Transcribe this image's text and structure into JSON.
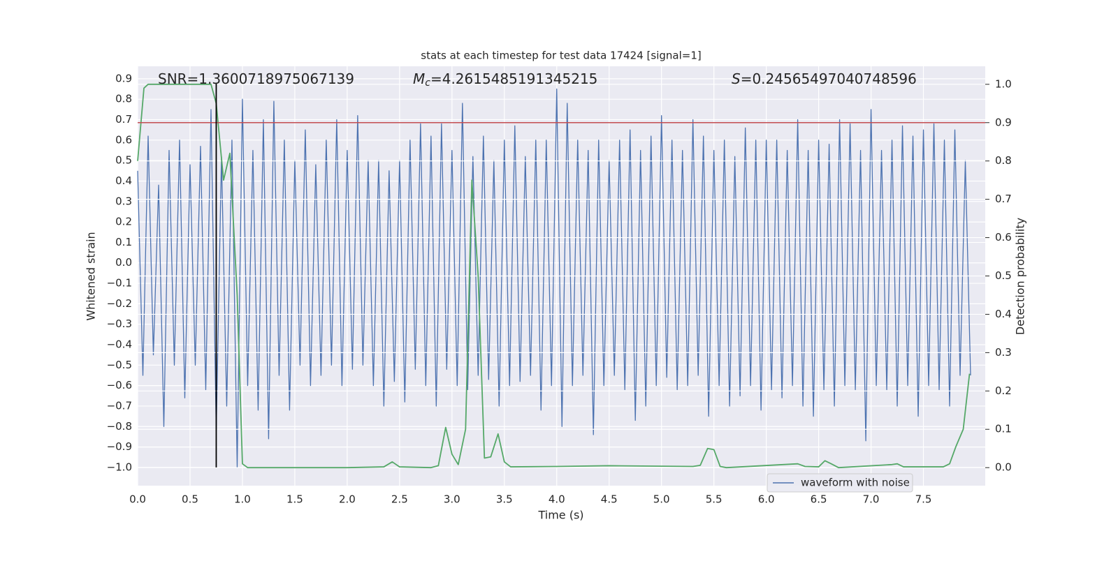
{
  "chart_data": {
    "type": "line",
    "title": "stats at each timestep for test data 17424 [signal=1]",
    "x_label": "Time (s)",
    "y_label": "Whitened strain",
    "y2_label": "Detection probability",
    "annotations": [
      {
        "text": "SNR=1.3600718975067139"
      },
      {
        "symbol": "M",
        "subscript": "c",
        "text": "=4.2615485191345215"
      },
      {
        "symbol": "S",
        "text": "=0.24565497040748596"
      }
    ],
    "xlim": [
      0,
      8.09
    ],
    "ylim": [
      -1.089,
      0.961
    ],
    "y2lim": [
      -0.047,
      1.047
    ],
    "xticks": [
      {
        "value": 0,
        "label": "0.0"
      },
      0.5,
      {
        "value": 1,
        "label": "1.0"
      },
      1.5,
      {
        "value": 2,
        "label": "2.0"
      },
      2.5,
      {
        "value": 3,
        "label": "3.0"
      },
      3.5,
      {
        "value": 4,
        "label": "4.0"
      },
      4.5,
      {
        "value": 5,
        "label": "5.0"
      },
      5.5,
      {
        "value": 6,
        "label": "6.0"
      },
      6.5,
      {
        "value": 7,
        "label": "7.0"
      },
      7.5
    ],
    "yticks": [
      {
        "value": -1,
        "label": "−1.0"
      },
      {
        "value": -0.9,
        "label": "−0.9"
      },
      {
        "value": -0.8,
        "label": "−0.8"
      },
      {
        "value": -0.7,
        "label": "−0.7"
      },
      {
        "value": -0.6,
        "label": "−0.6"
      },
      {
        "value": -0.5,
        "label": "−0.5"
      },
      {
        "value": -0.4,
        "label": "−0.4"
      },
      {
        "value": -0.3,
        "label": "−0.3"
      },
      {
        "value": -0.2,
        "label": "−0.2"
      },
      {
        "value": -0.1,
        "label": "−0.1"
      },
      {
        "value": 0,
        "label": "0.0"
      },
      0.1,
      0.2,
      0.3,
      0.4,
      0.5,
      0.6,
      0.7,
      0.8,
      0.9
    ],
    "y2ticks": [
      {
        "value": 0,
        "label": "0.0"
      },
      0.1,
      0.2,
      0.3,
      0.4,
      0.5,
      0.6,
      0.7,
      0.8,
      0.9,
      {
        "value": 1,
        "label": "1.0"
      }
    ],
    "grid": true,
    "legend": "lower right",
    "series": [
      {
        "name": "waveform with noise",
        "color": "#4c72b0",
        "x": [
          0,
          0.05,
          0.1,
          0.15,
          0.2,
          0.25,
          0.3,
          0.35,
          0.4,
          0.45,
          0.5,
          0.55,
          0.6,
          0.65,
          0.7,
          0.75,
          0.8,
          0.85,
          0.9,
          0.95,
          1,
          1.05,
          1.1,
          1.15,
          1.2,
          1.25,
          1.3,
          1.35,
          1.4,
          1.45,
          1.5,
          1.55,
          1.6,
          1.65,
          1.7,
          1.75,
          1.8,
          1.85,
          1.9,
          1.95,
          2,
          2.05,
          2.1,
          2.15,
          2.2,
          2.25,
          2.3,
          2.35,
          2.4,
          2.45,
          2.5,
          2.55,
          2.6,
          2.65,
          2.7,
          2.75,
          2.8,
          2.85,
          2.9,
          2.95,
          3,
          3.05,
          3.1,
          3.15,
          3.2,
          3.25,
          3.3,
          3.35,
          3.4,
          3.45,
          3.5,
          3.55,
          3.6,
          3.65,
          3.7,
          3.75,
          3.8,
          3.85,
          3.9,
          3.95,
          4,
          4.05,
          4.1,
          4.15,
          4.2,
          4.25,
          4.3,
          4.35,
          4.4,
          4.45,
          4.5,
          4.55,
          4.6,
          4.65,
          4.7,
          4.75,
          4.8,
          4.85,
          4.9,
          4.95,
          5,
          5.05,
          5.1,
          5.15,
          5.2,
          5.25,
          5.3,
          5.35,
          5.4,
          5.45,
          5.5,
          5.55,
          5.6,
          5.65,
          5.7,
          5.75,
          5.8,
          5.85,
          5.9,
          5.95,
          6,
          6.05,
          6.1,
          6.15,
          6.2,
          6.25,
          6.3,
          6.35,
          6.4,
          6.45,
          6.5,
          6.55,
          6.6,
          6.65,
          6.7,
          6.75,
          6.8,
          6.85,
          6.9,
          6.95,
          7,
          7.05,
          7.1,
          7.15,
          7.2,
          7.25,
          7.3,
          7.35,
          7.4,
          7.45,
          7.5,
          7.55,
          7.6,
          7.65,
          7.7,
          7.75,
          7.8,
          7.85,
          7.9,
          7.95
        ],
        "values": [
          0.45,
          -0.55,
          0.62,
          -0.45,
          0.38,
          -0.8,
          0.55,
          -0.5,
          0.6,
          -0.66,
          0.48,
          -0.5,
          0.57,
          -0.62,
          0.75,
          -0.82,
          0.52,
          -0.7,
          0.6,
          -1.0,
          0.8,
          -0.6,
          0.55,
          -0.72,
          0.7,
          -0.86,
          0.79,
          -0.55,
          0.6,
          -0.72,
          0.5,
          -0.5,
          0.65,
          -0.6,
          0.48,
          -0.55,
          0.6,
          -0.5,
          0.7,
          -0.6,
          0.55,
          -0.52,
          0.72,
          -0.5,
          0.5,
          -0.6,
          0.5,
          -0.7,
          0.45,
          -0.58,
          0.5,
          -0.68,
          0.6,
          -0.52,
          0.68,
          -0.6,
          0.62,
          -0.7,
          0.68,
          -0.52,
          0.55,
          -0.6,
          0.78,
          -0.62,
          0.52,
          -0.55,
          0.62,
          -0.57,
          0.5,
          -0.7,
          0.6,
          -0.6,
          0.67,
          -0.58,
          0.52,
          -0.55,
          0.6,
          -0.72,
          0.6,
          -0.6,
          0.85,
          -0.8,
          0.78,
          -0.6,
          0.6,
          -0.55,
          0.55,
          -0.84,
          0.6,
          -0.6,
          0.5,
          -0.55,
          0.6,
          -0.62,
          0.65,
          -0.77,
          0.55,
          -0.7,
          0.62,
          -0.6,
          0.72,
          -0.56,
          0.6,
          -0.62,
          0.55,
          -0.6,
          0.7,
          -0.55,
          0.62,
          -0.75,
          0.55,
          -0.6,
          0.6,
          -0.7,
          0.52,
          -0.65,
          0.66,
          -0.6,
          0.6,
          -0.72,
          0.6,
          -0.62,
          0.6,
          -0.66,
          0.55,
          -0.6,
          0.7,
          -0.7,
          0.55,
          -0.75,
          0.6,
          -0.62,
          0.58,
          -0.7,
          0.7,
          -0.6,
          0.68,
          -0.62,
          0.55,
          -0.87,
          0.75,
          -0.6,
          0.55,
          -0.62,
          0.6,
          -0.7,
          0.67,
          -0.6,
          0.62,
          -0.75,
          0.65,
          -0.6,
          0.68,
          -0.62,
          0.6,
          -0.7,
          0.65,
          -0.55,
          0.5,
          -0.55
        ]
      },
      {
        "color": "#55a868",
        "axis": "y2",
        "x": [
          0,
          0.06,
          0.1,
          0.7,
          0.75,
          0.82,
          0.88,
          0.95,
          1,
          1.05,
          1.5,
          2,
          2.35,
          2.43,
          2.5,
          2.8,
          2.87,
          2.94,
          3,
          3.06,
          3.13,
          3.19,
          3.25,
          3.31,
          3.37,
          3.44,
          3.5,
          3.56,
          4,
          4.5,
          5.3,
          5.37,
          5.44,
          5.5,
          5.56,
          5.62,
          6.3,
          6.37,
          6.5,
          6.56,
          6.62,
          6.69,
          7.2,
          7.25,
          7.31,
          7.69,
          7.75,
          7.81,
          7.88,
          7.94
        ],
        "values": [
          0.8,
          0.99,
          1.0,
          1.0,
          0.95,
          0.75,
          0.82,
          0.45,
          0.01,
          0.0,
          0.0,
          0.0,
          0.002,
          0.015,
          0.002,
          0.0,
          0.005,
          0.105,
          0.035,
          0.008,
          0.1,
          0.75,
          0.5,
          0.025,
          0.028,
          0.088,
          0.015,
          0.002,
          0.003,
          0.005,
          0.003,
          0.006,
          0.05,
          0.047,
          0.003,
          0.0,
          0.01,
          0.003,
          0.002,
          0.018,
          0.01,
          0.0,
          0.008,
          0.01,
          0.002,
          0.002,
          0.01,
          0.055,
          0.1,
          0.245
        ]
      }
    ],
    "threshold": {
      "value": 0.9,
      "axis": "y2",
      "color": "#c44e52"
    },
    "marker": {
      "x": 0.75,
      "y": [
        -1.0,
        0.88
      ],
      "color": "#000000"
    }
  }
}
